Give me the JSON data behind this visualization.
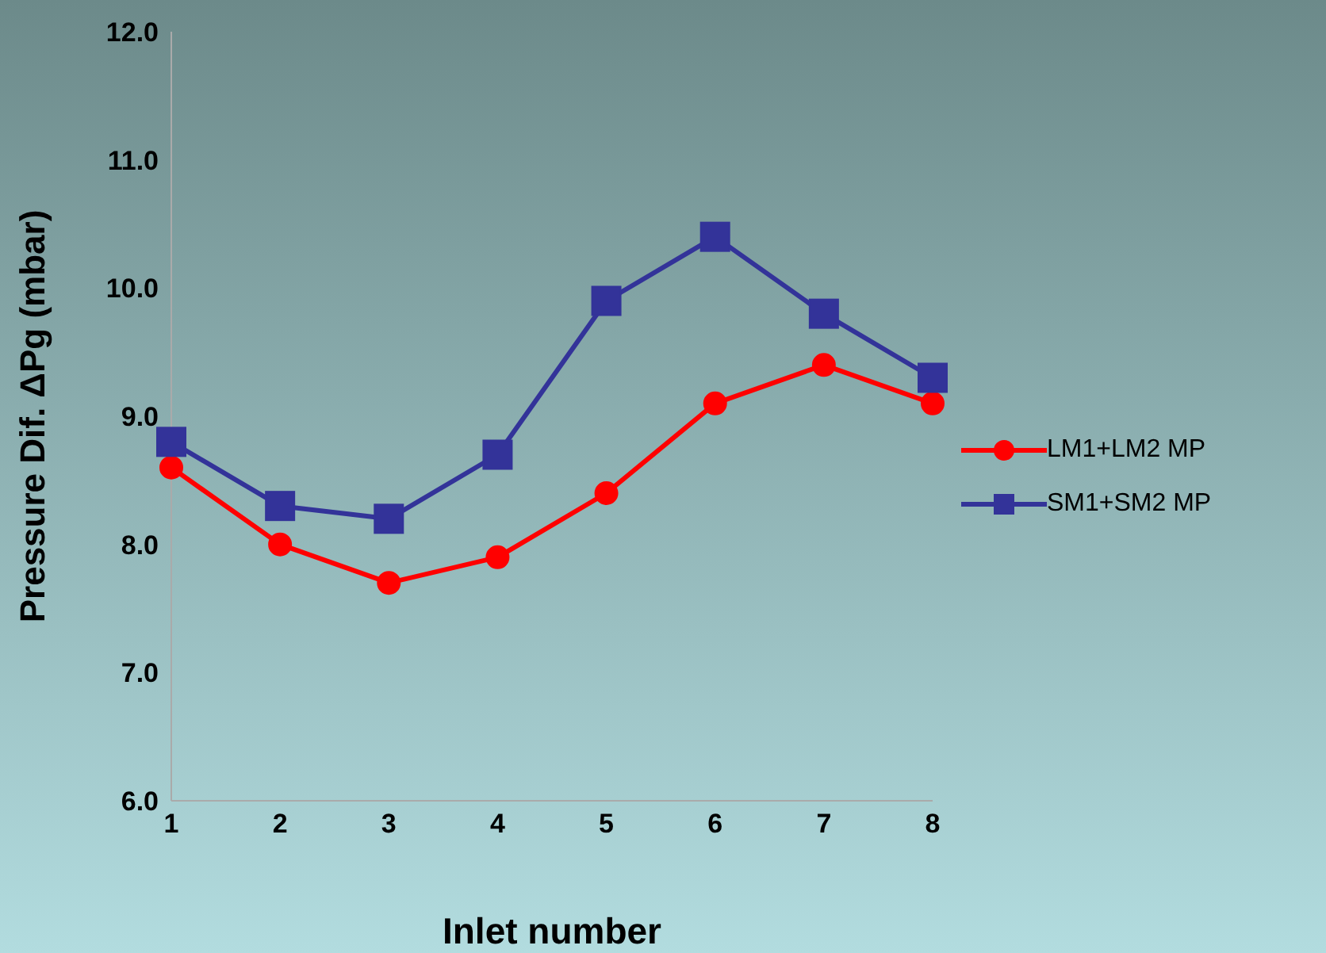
{
  "chart_data": {
    "type": "line",
    "xlabel": "Inlet number",
    "ylabel": "Pressure Dif. ΔPg (mbar)",
    "x": [
      1,
      2,
      3,
      4,
      5,
      6,
      7,
      8
    ],
    "xlim": [
      1,
      8
    ],
    "xticks": [
      1,
      2,
      3,
      4,
      5,
      6,
      7,
      8
    ],
    "ylim": [
      6,
      12
    ],
    "yticks": [
      {
        "value": 6,
        "label": "6.0"
      },
      {
        "value": 7,
        "label": "7.0"
      },
      {
        "value": 8,
        "label": "8.0"
      },
      {
        "value": 9,
        "label": "9.0"
      },
      {
        "value": 10,
        "label": "10.0"
      },
      {
        "value": 11,
        "label": "11.0"
      },
      {
        "value": 12,
        "label": "12.0"
      }
    ],
    "grid": false,
    "legend": "right",
    "line_style": "solid",
    "series": [
      {
        "name": "LM1+LM2 MP",
        "color": "#ff0000",
        "marker": "circle",
        "values": [
          8.6,
          8.0,
          7.7,
          7.9,
          8.4,
          9.1,
          9.4,
          9.1
        ]
      },
      {
        "name": "SM1+SM2 MP",
        "color": "#333399",
        "marker": "square",
        "values": [
          8.8,
          8.3,
          8.2,
          8.7,
          9.9,
          10.4,
          9.8,
          9.3
        ]
      }
    ]
  }
}
